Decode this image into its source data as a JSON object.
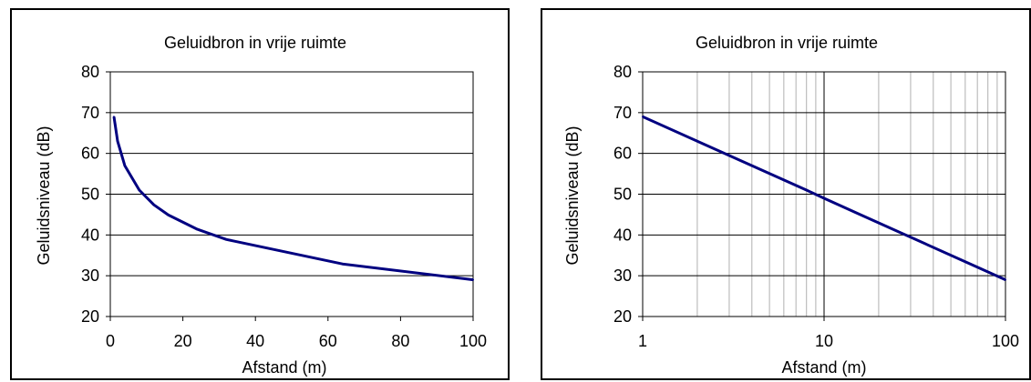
{
  "chart_data": [
    {
      "type": "line",
      "title": "Geluidbron in vrije ruimte",
      "xlabel": "Afstand (m)",
      "ylabel": "Geluidsniveau (dB)",
      "xlim": [
        0,
        100
      ],
      "ylim": [
        20,
        80
      ],
      "x_scale": "linear",
      "x_ticks": [
        "0",
        "20",
        "40",
        "60",
        "80",
        "100"
      ],
      "y_ticks": [
        "20",
        "30",
        "40",
        "50",
        "60",
        "70",
        "80"
      ],
      "grid": "horizontal",
      "line_color": "#000080",
      "series": [
        {
          "x": [
            1,
            2,
            4,
            8,
            12,
            16,
            24,
            32,
            64,
            100
          ],
          "values": [
            69,
            63,
            57,
            51,
            47.4,
            44.9,
            41.4,
            38.9,
            32.9,
            29
          ]
        }
      ]
    },
    {
      "type": "line",
      "title": "Geluidbron in vrije ruimte",
      "xlabel": "Afstand (m)",
      "ylabel": "Geluidsniveau (dB)",
      "xlim": [
        1,
        100
      ],
      "ylim": [
        20,
        80
      ],
      "x_scale": "log",
      "x_ticks": [
        "1",
        "10",
        "100"
      ],
      "y_ticks": [
        "20",
        "30",
        "40",
        "50",
        "60",
        "70",
        "80"
      ],
      "grid": "both",
      "line_color": "#000080",
      "series": [
        {
          "x": [
            1,
            2,
            4,
            8,
            10,
            16,
            32,
            64,
            100
          ],
          "values": [
            69,
            63,
            57,
            51,
            49,
            44.9,
            38.9,
            32.9,
            29
          ]
        }
      ]
    }
  ]
}
